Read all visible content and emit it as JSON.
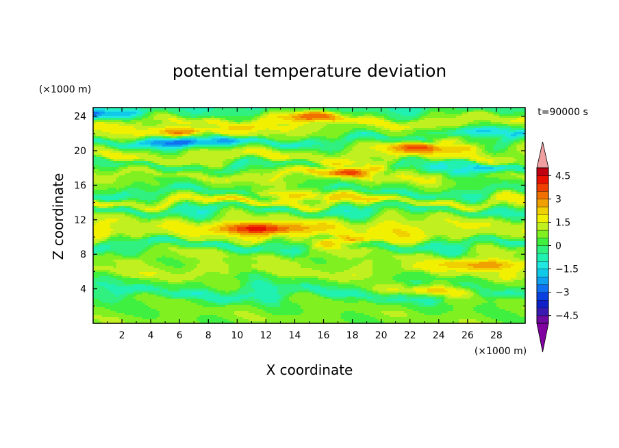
{
  "chart_data": {
    "type": "heatmap",
    "title": "potential temperature deviation",
    "xlabel": "X coordinate",
    "ylabel": "Z coordinate",
    "x_unit": "(×1000 m)",
    "y_unit": "(×1000 m)",
    "time_label": "t=90000 s",
    "xlim": [
      0,
      30
    ],
    "ylim": [
      0,
      25
    ],
    "x_ticks": [
      2,
      4,
      6,
      8,
      10,
      12,
      14,
      16,
      18,
      20,
      22,
      24,
      26,
      28
    ],
    "y_ticks": [
      4,
      8,
      12,
      16,
      20,
      24
    ],
    "colorbar": {
      "labels": [
        "4.5",
        "3",
        "1.5",
        "0",
        "−1.5",
        "−3",
        "−4.5"
      ],
      "label_values": [
        4.5,
        3,
        1.5,
        0,
        -1.5,
        -3,
        -4.5
      ],
      "levels": [
        -5,
        -4.5,
        -4,
        -3.5,
        -3,
        -2.5,
        -2,
        -1.5,
        -1,
        -0.5,
        0,
        0.5,
        1,
        1.5,
        2,
        2.5,
        3,
        3.5,
        4,
        4.5,
        5
      ],
      "colors": [
        "#6e0aa0",
        "#3a1ab0",
        "#1020c8",
        "#0a40e0",
        "#1070f0",
        "#10a0f0",
        "#10c8e8",
        "#20e8e0",
        "#20f0b0",
        "#30f080",
        "#40f040",
        "#80f020",
        "#c0f020",
        "#f0f000",
        "#f0d000",
        "#f0a000",
        "#f07000",
        "#f04000",
        "#e81000",
        "#c00010"
      ],
      "over_color": "#f0a0a0",
      "under_color": "#8000a0"
    },
    "bands": [
      {
        "z": 24.4,
        "value": -0.4
      },
      {
        "z": 23.6,
        "value": 1.6
      },
      {
        "z": 22.0,
        "value": 1.0
      },
      {
        "z": 21.0,
        "value": -1.2
      },
      {
        "z": 20.4,
        "value": 1.2
      },
      {
        "z": 19.2,
        "value": 1.4
      },
      {
        "z": 18.0,
        "value": -0.8
      },
      {
        "z": 17.4,
        "value": 1.6
      },
      {
        "z": 16.2,
        "value": 0.6
      },
      {
        "z": 15.0,
        "value": -0.6
      },
      {
        "z": 14.2,
        "value": 1.8
      },
      {
        "z": 13.0,
        "value": -0.8
      },
      {
        "z": 12.2,
        "value": 1.2
      },
      {
        "z": 11.0,
        "value": 1.6
      },
      {
        "z": 10.2,
        "value": 1.4
      },
      {
        "z": 9.0,
        "value": -0.6
      },
      {
        "z": 8.0,
        "value": 1.0
      },
      {
        "z": 7.0,
        "value": 0.8
      },
      {
        "z": 6.0,
        "value": 1.2
      },
      {
        "z": 4.8,
        "value": 0.4
      },
      {
        "z": 3.5,
        "value": -0.6
      },
      {
        "z": 2.2,
        "value": 0.5
      },
      {
        "z": 0.8,
        "value": 0.7
      }
    ],
    "features": [
      {
        "x": 0.8,
        "z": 24.2,
        "value": -2.8
      },
      {
        "x": 7.0,
        "z": 21.0,
        "value": -3.2
      },
      {
        "x": 26.5,
        "z": 22.2,
        "value": -2.6
      },
      {
        "x": 24.0,
        "z": 20.5,
        "value": 3.0
      },
      {
        "x": 6.5,
        "z": 22.0,
        "value": 2.5
      },
      {
        "x": 18.0,
        "z": 17.6,
        "value": 2.6
      },
      {
        "x": 14.0,
        "z": 14.8,
        "value": 2.4
      },
      {
        "x": 12.0,
        "z": 11.0,
        "value": 2.6
      },
      {
        "x": 17.0,
        "z": 9.5,
        "value": 2.0
      },
      {
        "x": 23.5,
        "z": 3.8,
        "value": 2.5
      },
      {
        "x": 27.0,
        "z": 6.8,
        "value": 2.0
      },
      {
        "x": 26.0,
        "z": 17.8,
        "value": -2.2
      },
      {
        "x": 15.0,
        "z": 24.0,
        "value": 1.8
      }
    ]
  }
}
